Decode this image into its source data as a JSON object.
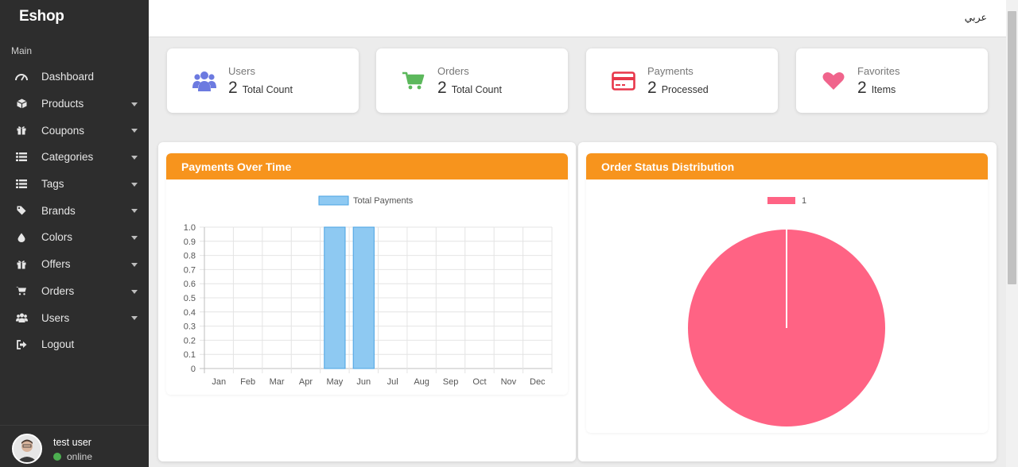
{
  "sidebar": {
    "brand": "Eshop",
    "section_label": "Main",
    "items": [
      {
        "label": "Dashboard",
        "icon": "gauge-icon",
        "has_submenu": false
      },
      {
        "label": "Products",
        "icon": "cube-icon",
        "has_submenu": true
      },
      {
        "label": "Coupons",
        "icon": "gift-icon",
        "has_submenu": true
      },
      {
        "label": "Categories",
        "icon": "list-icon",
        "has_submenu": true
      },
      {
        "label": "Tags",
        "icon": "list-icon",
        "has_submenu": true
      },
      {
        "label": "Brands",
        "icon": "tag-icon",
        "has_submenu": true
      },
      {
        "label": "Colors",
        "icon": "droplet-icon",
        "has_submenu": true
      },
      {
        "label": "Offers",
        "icon": "gift-icon",
        "has_submenu": true
      },
      {
        "label": "Orders",
        "icon": "cart-icon",
        "has_submenu": true
      },
      {
        "label": "Users",
        "icon": "users-icon",
        "has_submenu": true
      },
      {
        "label": "Logout",
        "icon": "sign-out-icon",
        "has_submenu": false
      }
    ],
    "user": {
      "name": "test user",
      "status": "online",
      "status_color": "#4caf50"
    }
  },
  "topbar": {
    "language_link": "عربي"
  },
  "stats": [
    {
      "title": "Users",
      "value": "2",
      "sub": "Total Count",
      "icon": "users-icon",
      "color": "#6c7ae0"
    },
    {
      "title": "Orders",
      "value": "2",
      "sub": "Total Count",
      "icon": "cart-icon",
      "color": "#5cb85c"
    },
    {
      "title": "Payments",
      "value": "2",
      "sub": "Processed",
      "icon": "credit-card-icon",
      "color": "#e8374a"
    },
    {
      "title": "Favorites",
      "value": "2",
      "sub": "Items",
      "icon": "heart-icon",
      "color": "#f0648c"
    }
  ],
  "panels": {
    "payments_title": "Payments Over Time",
    "order_status_title": "Order Status Distribution"
  },
  "colors": {
    "accent": "#f7941d",
    "bar_fill": "#8ec9f2",
    "bar_stroke": "#4aa3e3",
    "pie": "#ff6384"
  },
  "chart_data": [
    {
      "type": "bar",
      "legend": "Total Payments",
      "categories": [
        "Jan",
        "Feb",
        "Mar",
        "Apr",
        "May",
        "Jun",
        "Jul",
        "Aug",
        "Sep",
        "Oct",
        "Nov",
        "Dec"
      ],
      "series": [
        {
          "name": "Total Payments",
          "values": [
            0,
            0,
            0,
            0,
            1,
            1,
            0,
            0,
            0,
            0,
            0,
            0
          ]
        }
      ],
      "ylim": [
        0,
        1.0
      ],
      "yticks": [
        "0",
        "0.1",
        "0.2",
        "0.3",
        "0.4",
        "0.5",
        "0.6",
        "0.7",
        "0.8",
        "0.9",
        "1.0"
      ],
      "grid": true,
      "legend_position": "top"
    },
    {
      "type": "pie",
      "labels": [
        "1"
      ],
      "values": [
        2
      ],
      "legend_position": "top"
    }
  ]
}
